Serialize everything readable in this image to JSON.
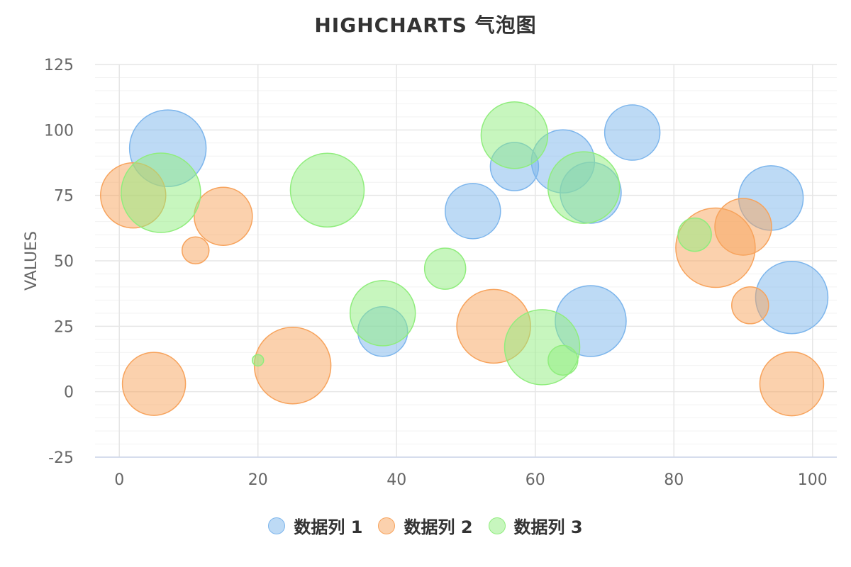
{
  "chart_data": {
    "type": "bubble",
    "title": "HIGHCHARTS 气泡图",
    "xlabel": "",
    "ylabel": "VALUES",
    "xlim": [
      -3.5,
      103.5
    ],
    "ylim": [
      -25,
      125
    ],
    "x_ticks": [
      0,
      20,
      40,
      60,
      80,
      100
    ],
    "y_ticks": [
      -25,
      0,
      25,
      50,
      75,
      100,
      125
    ],
    "grid": true,
    "legend_position": "bottom",
    "series": [
      {
        "name": "数据列 1",
        "color": "#7cb5ec",
        "points": [
          {
            "x": 7,
            "y": 93,
            "z": 10.8
          },
          {
            "x": 64,
            "y": 88,
            "z": 8.9
          },
          {
            "x": 74,
            "y": 99,
            "z": 7.8
          },
          {
            "x": 57,
            "y": 86,
            "z": 6.8
          },
          {
            "x": 68,
            "y": 76,
            "z": 8.6
          },
          {
            "x": 51,
            "y": 69,
            "z": 7.8
          },
          {
            "x": 94,
            "y": 74,
            "z": 9.1
          },
          {
            "x": 97,
            "y": 36,
            "z": 10.2
          },
          {
            "x": 68,
            "y": 27,
            "z": 10.0
          },
          {
            "x": 38,
            "y": 23,
            "z": 7.0
          }
        ]
      },
      {
        "name": "数据列 2",
        "color": "#f7a35c",
        "points": [
          {
            "x": 2,
            "y": 75,
            "z": 9.2
          },
          {
            "x": 15,
            "y": 67,
            "z": 8.2
          },
          {
            "x": 11,
            "y": 54,
            "z": 3.8
          },
          {
            "x": 5,
            "y": 3,
            "z": 8.9
          },
          {
            "x": 25,
            "y": 10,
            "z": 10.8
          },
          {
            "x": 54,
            "y": 25,
            "z": 10.4
          },
          {
            "x": 86,
            "y": 55,
            "z": 11.2
          },
          {
            "x": 90,
            "y": 63,
            "z": 8.0
          },
          {
            "x": 91,
            "y": 33,
            "z": 5.2
          },
          {
            "x": 97,
            "y": 3,
            "z": 9.0
          }
        ]
      },
      {
        "name": "数据列 3",
        "color": "#90ed7d",
        "points": [
          {
            "x": 6,
            "y": 76,
            "z": 11.2
          },
          {
            "x": 30,
            "y": 77,
            "z": 10.4
          },
          {
            "x": 20,
            "y": 12,
            "z": 1.6
          },
          {
            "x": 38,
            "y": 30,
            "z": 9.2
          },
          {
            "x": 47,
            "y": 47,
            "z": 5.8
          },
          {
            "x": 57,
            "y": 98,
            "z": 9.4
          },
          {
            "x": 67,
            "y": 78,
            "z": 10.1
          },
          {
            "x": 61,
            "y": 17,
            "z": 10.6
          },
          {
            "x": 64,
            "y": 12,
            "z": 4.2
          },
          {
            "x": 83,
            "y": 60,
            "z": 4.7
          }
        ]
      }
    ]
  }
}
